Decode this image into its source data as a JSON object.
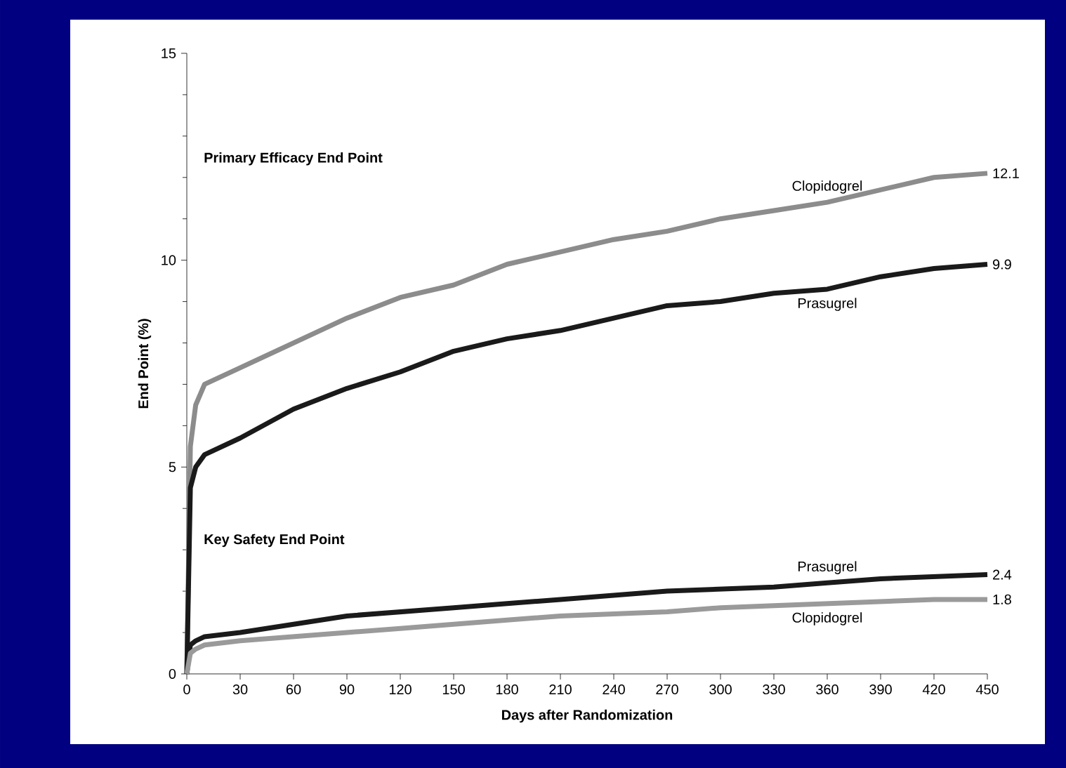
{
  "chart_data": {
    "type": "line",
    "xlabel": "Days after Randomization",
    "ylabel": "End Point (%)",
    "annotations": [
      "Primary Efficacy End Point",
      "Key Safety End Point"
    ],
    "xlim": [
      0,
      450
    ],
    "xticks": [
      0,
      30,
      60,
      90,
      120,
      150,
      180,
      210,
      240,
      270,
      300,
      330,
      360,
      390,
      420,
      450
    ],
    "ylim": [
      0,
      15
    ],
    "yticks": [
      0,
      5,
      10,
      15
    ],
    "grid": false,
    "legend": false,
    "marker": "none",
    "line_style": "solid",
    "x": [
      0,
      2,
      5,
      10,
      30,
      60,
      90,
      120,
      150,
      180,
      210,
      240,
      270,
      300,
      330,
      360,
      390,
      420,
      450
    ],
    "series": [
      {
        "name": "Clopidogrel",
        "color": "#8c8c8c",
        "values": [
          0,
          5.5,
          6.5,
          7.0,
          7.4,
          8.0,
          8.6,
          9.1,
          9.4,
          9.9,
          10.2,
          10.5,
          10.7,
          11.0,
          11.2,
          11.4,
          11.7,
          12.0,
          12.1
        ],
        "value_labels": [
          null,
          null,
          null,
          null,
          null,
          null,
          null,
          null,
          null,
          null,
          null,
          null,
          null,
          null,
          null,
          null,
          null,
          null,
          "12.1"
        ]
      },
      {
        "name": "Prasugrel",
        "color": "#1a1a1a",
        "values": [
          0,
          4.5,
          5.0,
          5.3,
          5.7,
          6.4,
          6.9,
          7.3,
          7.8,
          8.1,
          8.3,
          8.6,
          8.9,
          9.0,
          9.2,
          9.3,
          9.6,
          9.8,
          9.9
        ],
        "value_labels": [
          null,
          null,
          null,
          null,
          null,
          null,
          null,
          null,
          null,
          null,
          null,
          null,
          null,
          null,
          null,
          null,
          null,
          null,
          "9.9"
        ]
      },
      {
        "name": "Prasugrel",
        "color": "#1a1a1a",
        "values": [
          0,
          0.7,
          0.8,
          0.9,
          1.0,
          1.2,
          1.4,
          1.5,
          1.6,
          1.7,
          1.8,
          1.9,
          2.0,
          2.05,
          2.1,
          2.2,
          2.3,
          2.35,
          2.4
        ],
        "value_labels": [
          null,
          null,
          null,
          null,
          null,
          null,
          null,
          null,
          null,
          null,
          null,
          null,
          null,
          null,
          null,
          null,
          null,
          null,
          "2.4"
        ]
      },
      {
        "name": "Clopidogrel",
        "color": "#9a9a9a",
        "values": [
          0,
          0.5,
          0.6,
          0.7,
          0.8,
          0.9,
          1.0,
          1.1,
          1.2,
          1.3,
          1.4,
          1.45,
          1.5,
          1.6,
          1.65,
          1.7,
          1.75,
          1.8,
          1.8
        ],
        "value_labels": [
          null,
          null,
          null,
          null,
          null,
          null,
          null,
          null,
          null,
          null,
          null,
          null,
          null,
          null,
          null,
          null,
          null,
          null,
          "1.8"
        ]
      }
    ]
  }
}
